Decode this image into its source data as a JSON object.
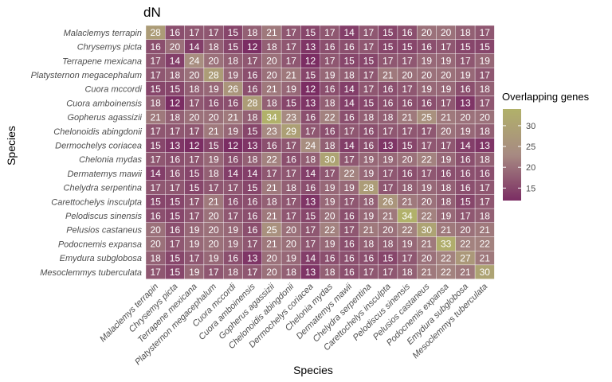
{
  "chart_data": {
    "type": "heatmap",
    "title": "dN",
    "xlabel": "Species",
    "ylabel": "Species",
    "species": [
      "Malaclemys terrapin",
      "Chrysemys picta",
      "Terrapene mexicana",
      "Platysternon megacephalum",
      "Cuora mccordi",
      "Cuora amboinensis",
      "Gopherus agassizii",
      "Chelonoidis abingdonii",
      "Dermochelys coriacea",
      "Chelonia mydas",
      "Dermatemys mawii",
      "Chelydra serpentina",
      "Carettochelys insculpta",
      "Pelodiscus sinensis",
      "Pelusios castaneus",
      "Podocnemis expansa",
      "Emydura subglobosa",
      "Mesoclemmys tuberculata"
    ],
    "values": [
      [
        28,
        16,
        17,
        17,
        15,
        18,
        21,
        17,
        15,
        17,
        14,
        17,
        15,
        16,
        20,
        20,
        18,
        17
      ],
      [
        16,
        20,
        14,
        18,
        15,
        12,
        18,
        17,
        13,
        16,
        16,
        17,
        15,
        15,
        16,
        17,
        15,
        15
      ],
      [
        17,
        14,
        24,
        20,
        18,
        17,
        20,
        17,
        12,
        17,
        15,
        15,
        17,
        17,
        19,
        19,
        17,
        19
      ],
      [
        17,
        18,
        20,
        28,
        19,
        16,
        20,
        21,
        15,
        19,
        18,
        17,
        21,
        20,
        20,
        20,
        19,
        17
      ],
      [
        15,
        15,
        18,
        19,
        26,
        16,
        21,
        19,
        12,
        16,
        14,
        17,
        16,
        17,
        19,
        19,
        16,
        18
      ],
      [
        18,
        12,
        17,
        16,
        16,
        28,
        18,
        15,
        13,
        18,
        14,
        15,
        16,
        16,
        16,
        17,
        13,
        17
      ],
      [
        21,
        18,
        20,
        20,
        21,
        18,
        34,
        23,
        16,
        22,
        16,
        18,
        18,
        21,
        25,
        21,
        20,
        20
      ],
      [
        17,
        17,
        17,
        21,
        19,
        15,
        23,
        29,
        17,
        16,
        17,
        16,
        17,
        17,
        17,
        20,
        19,
        18
      ],
      [
        15,
        13,
        12,
        15,
        12,
        13,
        16,
        17,
        24,
        18,
        14,
        16,
        13,
        15,
        17,
        17,
        14,
        13
      ],
      [
        17,
        16,
        17,
        19,
        16,
        18,
        22,
        16,
        18,
        30,
        17,
        19,
        19,
        20,
        22,
        19,
        16,
        18
      ],
      [
        14,
        16,
        15,
        18,
        14,
        14,
        17,
        17,
        14,
        17,
        22,
        19,
        17,
        16,
        17,
        16,
        16,
        16
      ],
      [
        17,
        17,
        15,
        17,
        17,
        15,
        21,
        18,
        16,
        19,
        19,
        28,
        17,
        18,
        19,
        18,
        16,
        17
      ],
      [
        15,
        15,
        17,
        21,
        16,
        16,
        18,
        17,
        13,
        19,
        17,
        18,
        26,
        21,
        20,
        18,
        15,
        17
      ],
      [
        16,
        15,
        17,
        20,
        17,
        16,
        21,
        17,
        15,
        20,
        16,
        19,
        21,
        34,
        22,
        19,
        17,
        18
      ],
      [
        20,
        16,
        19,
        20,
        19,
        16,
        25,
        20,
        17,
        22,
        17,
        21,
        20,
        22,
        30,
        21,
        20,
        21
      ],
      [
        20,
        17,
        19,
        20,
        19,
        17,
        21,
        20,
        17,
        19,
        16,
        18,
        18,
        19,
        21,
        33,
        22,
        22
      ],
      [
        18,
        15,
        17,
        19,
        16,
        13,
        20,
        19,
        14,
        16,
        16,
        16,
        15,
        17,
        20,
        22,
        27,
        21
      ],
      [
        17,
        15,
        19,
        17,
        18,
        17,
        20,
        18,
        13,
        18,
        16,
        17,
        17,
        18,
        21,
        22,
        21,
        30
      ]
    ],
    "colorbar": {
      "title": "Overlapping genes",
      "ticks": [
        15,
        20,
        25,
        30
      ],
      "range": [
        12,
        34
      ],
      "low_color": "#7b2d63",
      "mid_color": "#a78a82",
      "high_color": "#b1b16a"
    }
  }
}
